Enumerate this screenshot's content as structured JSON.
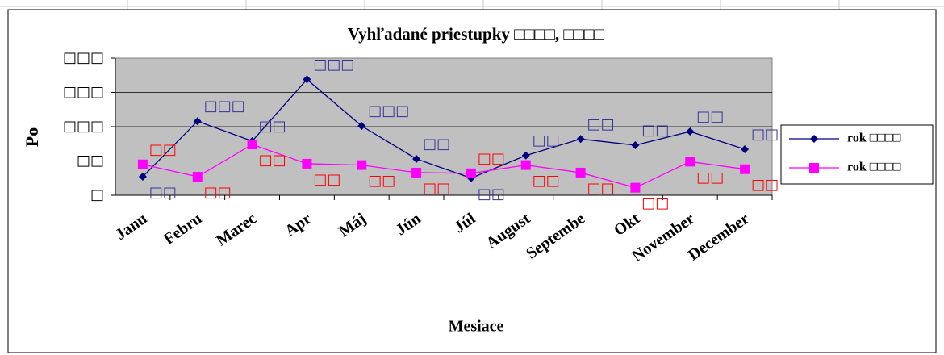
{
  "chart_data": {
    "type": "line",
    "title": "Vyhľadané priestupky □□□□, □□□□",
    "x_label": "Mesiace",
    "y_label": "Po",
    "categories": [
      "Janu",
      "Febru",
      "Marec",
      "Apr",
      "Máj",
      "Jún",
      "Júl",
      "August",
      "Septembe",
      "Okt",
      "November",
      "December"
    ],
    "series": [
      {
        "name": "rok □□□□",
        "color": "#000080",
        "label_color": "#333399",
        "marker": "diamond",
        "values": [
          27,
          108,
          79,
          169,
          101,
          53,
          25,
          58,
          82,
          73,
          93,
          67
        ],
        "value_labels": [
          "□□",
          "□□□",
          "□□",
          "□□□",
          "□□□",
          "□□",
          "□□",
          "□□",
          "□□",
          "□□",
          "□□",
          "□□"
        ]
      },
      {
        "name": "rok □□□□",
        "color": "#ff00ff",
        "label_color": "#ff0000",
        "marker": "square",
        "values": [
          45,
          27,
          74,
          46,
          44,
          33,
          32,
          44,
          33,
          11,
          49,
          38
        ],
        "value_labels": [
          "□□",
          "□□",
          "□□",
          "□□",
          "□□",
          "□□",
          "□□",
          "□□",
          "□□",
          "□□",
          "□□",
          "□□"
        ]
      }
    ],
    "ylim": [
      0,
      200
    ],
    "yticks": [
      {
        "value": 0,
        "label": "□"
      },
      {
        "value": 50,
        "label": "□□"
      },
      {
        "value": 100,
        "label": "□□□"
      },
      {
        "value": 150,
        "label": "□□□"
      },
      {
        "value": 200,
        "label": "□□□"
      }
    ],
    "grid": true,
    "legend": "right"
  }
}
